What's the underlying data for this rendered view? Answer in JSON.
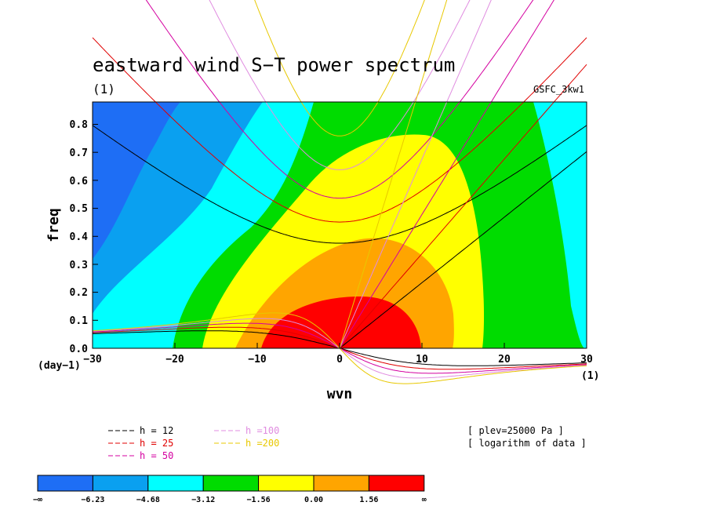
{
  "chart_data": {
    "type": "heatmap",
    "title": "eastward wind S−T power spectrum",
    "subtitle": "(1)",
    "source_label": "GSFC_3kw1",
    "xlabel": "wvn",
    "ylabel": "freq",
    "x_unit": "(1)",
    "y_unit": "(day−1)",
    "xlim": [
      -30,
      30
    ],
    "ylim": [
      0,
      0.88
    ],
    "x_ticks": [
      "−30",
      "−20",
      "−10",
      "0",
      "10",
      "20",
      "30"
    ],
    "y_ticks": [
      "0.0",
      "0.1",
      "0.2",
      "0.3",
      "0.4",
      "0.5",
      "0.6",
      "0.7",
      "0.8"
    ],
    "contour_levels": [
      "−∞",
      "−6.23",
      "−4.68",
      "−3.12",
      "−1.56",
      "0.00",
      "1.56",
      "∞"
    ],
    "contour_colors": [
      "#1e6ef5",
      "#0aa0f0",
      "#00ffff",
      "#00dc00",
      "#ffff00",
      "#ffa500",
      "#ff0000"
    ],
    "dispersion_curves": [
      {
        "label": "h = 12",
        "color": "#000000"
      },
      {
        "label": "h = 25",
        "color": "#e00000"
      },
      {
        "label": "h = 50",
        "color": "#d400a0"
      },
      {
        "label": "h =100",
        "color": "#e08ce0"
      },
      {
        "label": "h =200",
        "color": "#e8c800"
      }
    ],
    "annotations": [
      "[ plev=25000 Pa ]",
      "[ logarithm of data ]"
    ],
    "grid": false
  }
}
